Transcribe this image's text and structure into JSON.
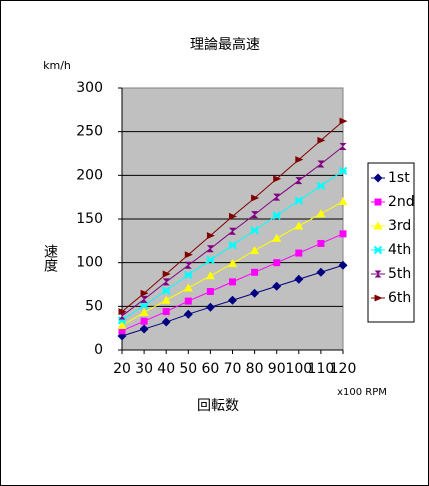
{
  "chart_data": {
    "type": "line",
    "title": "理論最高速",
    "unit_label": "km/h",
    "y_label": "速度",
    "x_label": "回転数",
    "x_unit_label": "x100 RPM",
    "x": [
      20,
      30,
      40,
      50,
      60,
      70,
      80,
      90,
      100,
      110,
      120
    ],
    "xlim": [
      20,
      120
    ],
    "xticks": [
      20,
      30,
      40,
      50,
      60,
      70,
      80,
      90,
      100,
      110,
      120
    ],
    "ylim": [
      0,
      300
    ],
    "yticks": [
      0,
      50,
      100,
      150,
      200,
      250,
      300
    ],
    "grid": true,
    "plot_background": "#c0c0c0",
    "legend": "right",
    "series": [
      {
        "name": "1st",
        "color": "#000080",
        "marker": "diamond",
        "values": [
          16,
          24,
          32,
          41,
          49,
          57,
          65,
          73,
          81,
          89,
          97
        ]
      },
      {
        "name": "2nd",
        "color": "#ff00ff",
        "marker": "square",
        "values": [
          22,
          33,
          44,
          56,
          67,
          78,
          89,
          100,
          111,
          122,
          133
        ]
      },
      {
        "name": "3rd",
        "color": "#ffff00",
        "marker": "triangle",
        "values": [
          28,
          43,
          57,
          71,
          85,
          99,
          114,
          128,
          142,
          156,
          170
        ]
      },
      {
        "name": "4th",
        "color": "#00ffff",
        "marker": "cross",
        "values": [
          34,
          51,
          68,
          86,
          103,
          120,
          137,
          154,
          171,
          188,
          205
        ]
      },
      {
        "name": "5th",
        "color": "#800080",
        "marker": "hourglass",
        "values": [
          39,
          58,
          78,
          97,
          116,
          136,
          155,
          175,
          194,
          213,
          233
        ]
      },
      {
        "name": "6th",
        "color": "#800000",
        "marker": "arrow",
        "values": [
          44,
          65,
          87,
          109,
          131,
          153,
          174,
          196,
          218,
          240,
          262
        ]
      }
    ]
  }
}
